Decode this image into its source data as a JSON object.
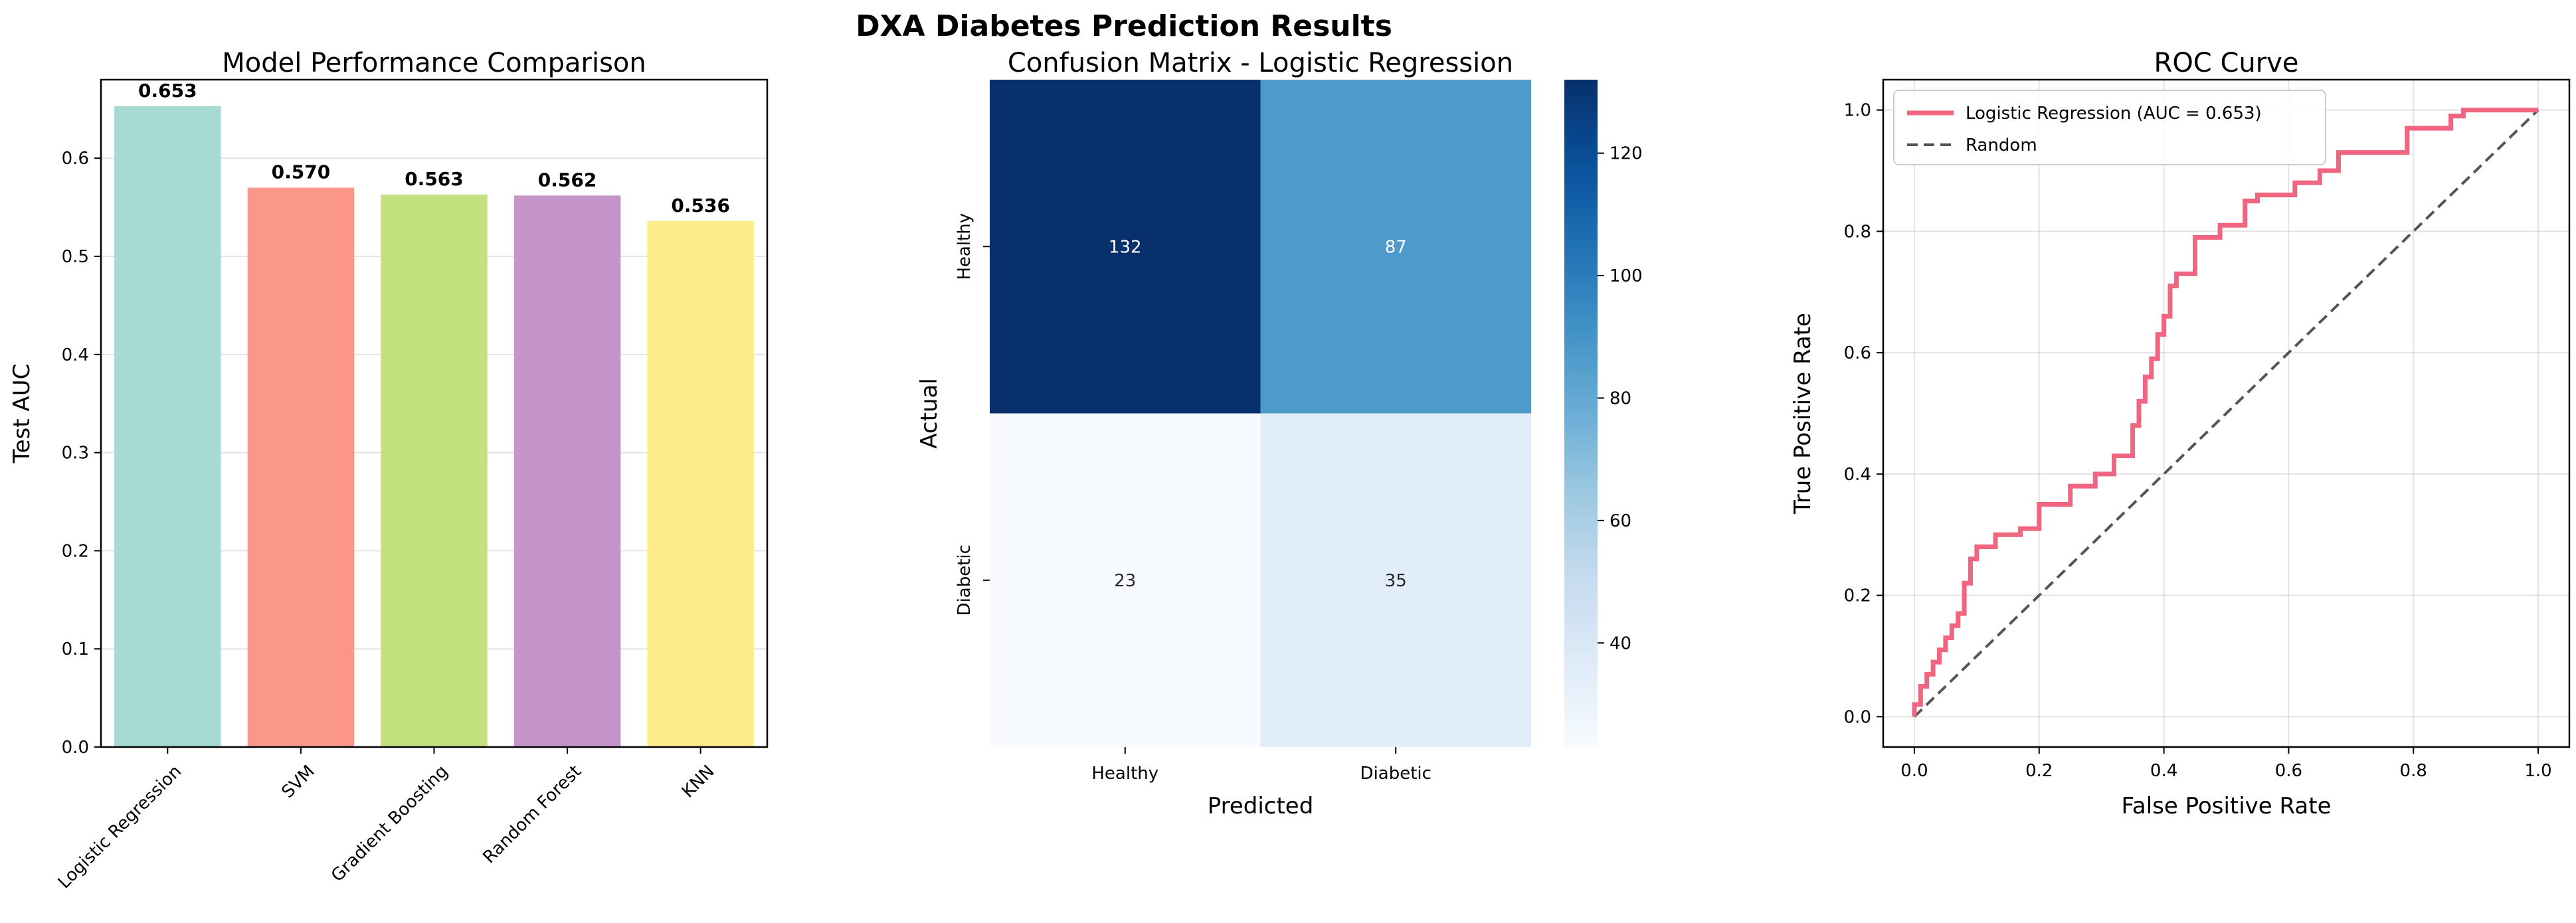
{
  "suptitle": "DXA Diabetes Prediction Results",
  "chart_data": [
    {
      "type": "bar",
      "title": "Model Performance Comparison",
      "xlabel": "",
      "ylabel": "Test AUC",
      "categories": [
        "Logistic Regression",
        "SVM",
        "Gradient Boosting",
        "Random Forest",
        "KNN"
      ],
      "values": [
        0.653,
        0.57,
        0.563,
        0.562,
        0.536
      ],
      "value_labels": [
        "0.653",
        "0.570",
        "0.563",
        "0.562",
        "0.536"
      ],
      "colors": [
        "#a6dbd4",
        "#fb978a",
        "#c3e17f",
        "#c594c8",
        "#ffec8a"
      ],
      "ylim": [
        0,
        0.68
      ],
      "yticks": [
        0.0,
        0.1,
        0.2,
        0.3,
        0.4,
        0.5,
        0.6
      ],
      "ytick_labels": [
        "0.0",
        "0.1",
        "0.2",
        "0.3",
        "0.4",
        "0.5",
        "0.6"
      ],
      "grid": true
    },
    {
      "type": "heatmap",
      "title": "Confusion Matrix - Logistic Regression",
      "xlabel": "Predicted",
      "ylabel": "Actual",
      "x_categories": [
        "Healthy",
        "Diabetic"
      ],
      "y_categories": [
        "Healthy",
        "Diabetic"
      ],
      "values": [
        [
          132,
          87
        ],
        [
          23,
          35
        ]
      ],
      "colormap": "Blues",
      "colorbar_range": [
        23,
        132
      ],
      "colorbar_ticks": [
        40,
        60,
        80,
        100,
        120
      ],
      "colorbar_tick_labels": [
        "40",
        "60",
        "80",
        "100",
        "120"
      ]
    },
    {
      "type": "line",
      "title": "ROC Curve",
      "xlabel": "False Positive Rate",
      "ylabel": "True Positive Rate",
      "xlim": [
        -0.05,
        1.05
      ],
      "ylim": [
        -0.05,
        1.05
      ],
      "ticks": [
        0.0,
        0.2,
        0.4,
        0.6,
        0.8,
        1.0
      ],
      "tick_labels": [
        "0.0",
        "0.2",
        "0.4",
        "0.6",
        "0.8",
        "1.0"
      ],
      "legend_position": "top-left",
      "grid": true,
      "series": [
        {
          "name": "Logistic Regression (AUC = 0.653)",
          "color": "#f0657f",
          "style": "solid",
          "x": [
            0.0,
            0.0,
            0.01,
            0.01,
            0.02,
            0.02,
            0.03,
            0.03,
            0.04,
            0.04,
            0.05,
            0.05,
            0.06,
            0.06,
            0.07,
            0.07,
            0.08,
            0.08,
            0.09,
            0.09,
            0.1,
            0.1,
            0.13,
            0.13,
            0.17,
            0.17,
            0.2,
            0.2,
            0.25,
            0.25,
            0.29,
            0.29,
            0.32,
            0.32,
            0.35,
            0.35,
            0.36,
            0.36,
            0.37,
            0.37,
            0.38,
            0.38,
            0.39,
            0.39,
            0.4,
            0.4,
            0.41,
            0.41,
            0.42,
            0.42,
            0.45,
            0.45,
            0.49,
            0.49,
            0.53,
            0.53,
            0.55,
            0.55,
            0.61,
            0.61,
            0.65,
            0.65,
            0.68,
            0.68,
            0.79,
            0.79,
            0.86,
            0.86,
            0.88,
            0.88,
            1.0
          ],
          "y": [
            0.0,
            0.02,
            0.02,
            0.05,
            0.05,
            0.07,
            0.07,
            0.09,
            0.09,
            0.11,
            0.11,
            0.13,
            0.13,
            0.15,
            0.15,
            0.17,
            0.17,
            0.22,
            0.22,
            0.26,
            0.26,
            0.28,
            0.28,
            0.3,
            0.3,
            0.31,
            0.31,
            0.35,
            0.35,
            0.38,
            0.38,
            0.4,
            0.4,
            0.43,
            0.43,
            0.48,
            0.48,
            0.52,
            0.52,
            0.56,
            0.56,
            0.59,
            0.59,
            0.63,
            0.63,
            0.66,
            0.66,
            0.71,
            0.71,
            0.73,
            0.73,
            0.79,
            0.79,
            0.81,
            0.81,
            0.85,
            0.85,
            0.86,
            0.86,
            0.88,
            0.88,
            0.9,
            0.9,
            0.93,
            0.93,
            0.97,
            0.97,
            0.99,
            0.99,
            1.0,
            1.0
          ]
        },
        {
          "name": "Random",
          "color": "#555555",
          "style": "dashed",
          "x": [
            0,
            1
          ],
          "y": [
            0,
            1
          ]
        }
      ]
    }
  ]
}
